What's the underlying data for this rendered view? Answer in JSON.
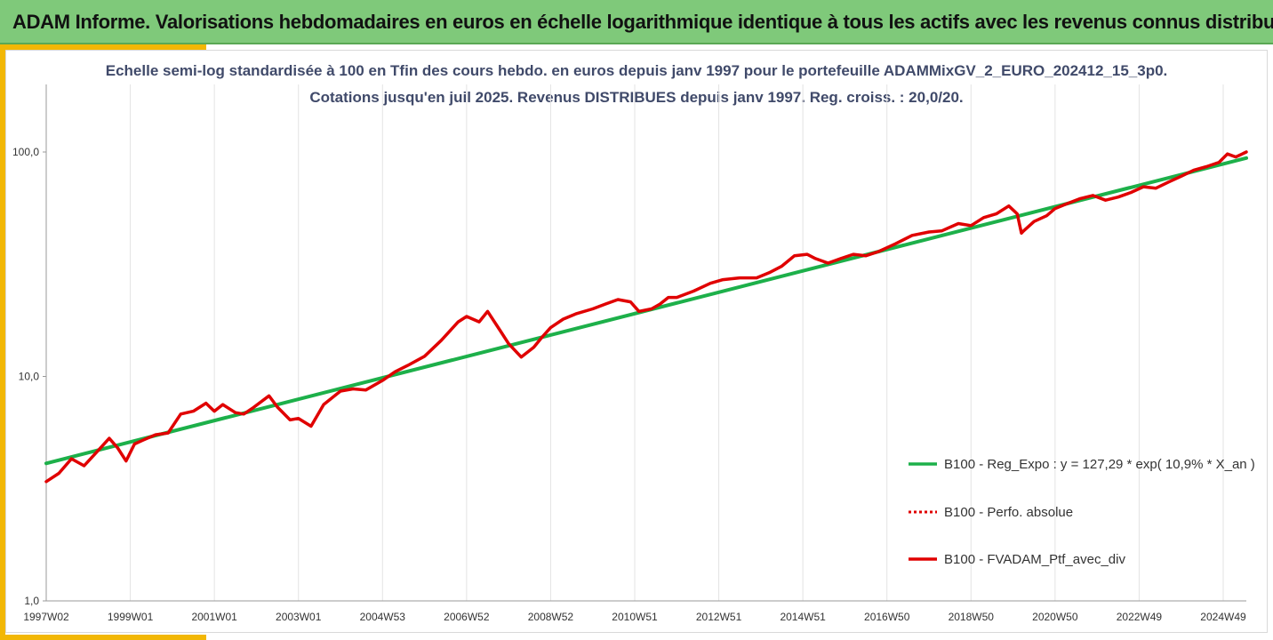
{
  "header": {
    "title": "ADAM Informe. Valorisations hebdomadaires en euros en échelle logarithmique identique à tous les actifs avec les revenus connus distribués"
  },
  "chart_data": {
    "type": "line",
    "title": "Echelle semi-log standardisée  à 100 en Tfin des cours hebdo.  en euros depuis janv 1997 pour le portefeuille ADAMMixGV_2_EURO_202412_15_3p0.",
    "subtitle": "Cotations  jusqu'en juil 2025. Revenus DISTRIBUES depuis janv 1997. Reg. croiss. : 20,0/20.",
    "y_scale": "log",
    "ylim": [
      1,
      200
    ],
    "y_ticks": [
      1,
      10,
      100
    ],
    "y_tick_labels": [
      "1,0",
      "10,0",
      "100,0"
    ],
    "x_range": [
      1997.0,
      2025.55
    ],
    "x_ticks": [
      1997.0,
      1999.0,
      2001.0,
      2003.0,
      2005.0,
      2007.0,
      2009.0,
      2011.0,
      2013.0,
      2015.0,
      2017.0,
      2019.0,
      2021.0,
      2023.0,
      2025.0
    ],
    "x_tick_labels": [
      "1997W02",
      "1999W01",
      "2001W01",
      "2003W01",
      "2004W53",
      "2006W52",
      "2008W52",
      "2010W51",
      "2012W51",
      "2014W51",
      "2016W50",
      "2018W50",
      "2020W50",
      "2022W49",
      "2024W49"
    ],
    "grid": "vertical",
    "legend_position": "right",
    "legend": [
      {
        "label": "B100 - Reg_Expo : y = 127,29 * exp( 10,9% *  X_an )",
        "color": "#1db04a",
        "style": "solid"
      },
      {
        "label": "B100 - Perfo. absolue",
        "color": "#e00000",
        "style": "dotted"
      },
      {
        "label": "B100 - FVADAM_Ptf_avec_div",
        "color": "#e00000",
        "style": "solid"
      }
    ],
    "series": [
      {
        "name": "B100 - Reg_Expo : y = 127,29 * exp( 10,9% *  X_an )",
        "x": [
          1997.0,
          2025.55
        ],
        "values": [
          4.1,
          94
        ]
      },
      {
        "name": "B100 - FVADAM_Ptf_avec_div",
        "x": [
          1997.0,
          1997.3,
          1997.6,
          1997.9,
          1998.2,
          1998.5,
          1998.7,
          1998.9,
          1999.1,
          1999.3,
          1999.6,
          1999.9,
          2000.2,
          2000.5,
          2000.8,
          2001.0,
          2001.2,
          2001.5,
          2001.7,
          2001.9,
          2002.3,
          2002.5,
          2002.8,
          2003.0,
          2003.3,
          2003.6,
          2004.0,
          2004.3,
          2004.6,
          2005.0,
          2005.3,
          2005.6,
          2006.0,
          2006.4,
          2006.8,
          2007.0,
          2007.3,
          2007.5,
          2007.8,
          2008.0,
          2008.3,
          2008.6,
          2008.8,
          2009.0,
          2009.3,
          2009.6,
          2010.0,
          2010.3,
          2010.6,
          2010.9,
          2011.1,
          2011.4,
          2011.6,
          2011.8,
          2012.0,
          2012.4,
          2012.8,
          2013.1,
          2013.5,
          2013.9,
          2014.2,
          2014.5,
          2014.8,
          2015.1,
          2015.3,
          2015.6,
          2015.9,
          2016.2,
          2016.5,
          2016.8,
          2017.2,
          2017.6,
          2018.0,
          2018.3,
          2018.7,
          2019.0,
          2019.3,
          2019.6,
          2019.9,
          2020.1,
          2020.2,
          2020.25,
          2020.5,
          2020.8,
          2021.0,
          2021.3,
          2021.6,
          2021.9,
          2022.2,
          2022.5,
          2022.8,
          2023.1,
          2023.4,
          2023.7,
          2024.0,
          2024.3,
          2024.6,
          2024.9,
          2025.1,
          2025.3,
          2025.55
        ],
        "values": [
          3.4,
          3.7,
          4.3,
          4.0,
          4.6,
          5.3,
          4.8,
          4.2,
          5.0,
          5.2,
          5.5,
          5.6,
          6.8,
          7.0,
          7.6,
          7.0,
          7.5,
          6.9,
          6.8,
          7.2,
          8.2,
          7.3,
          6.4,
          6.5,
          6.0,
          7.5,
          8.6,
          8.8,
          8.7,
          9.6,
          10.5,
          11.2,
          12.3,
          14.5,
          17.5,
          18.5,
          17.5,
          19.5,
          16.0,
          14.0,
          12.2,
          13.5,
          15.0,
          16.5,
          18.0,
          19.0,
          20.0,
          21.0,
          22.0,
          21.5,
          19.5,
          20.0,
          21.0,
          22.5,
          22.5,
          24.0,
          26.0,
          27.0,
          27.5,
          27.5,
          29.0,
          31.0,
          34.5,
          35.0,
          33.5,
          32.0,
          33.5,
          35.0,
          34.5,
          36.0,
          39.0,
          42.5,
          44.0,
          44.5,
          48.0,
          47.0,
          51.0,
          53.0,
          57.5,
          53.0,
          43.5,
          44.5,
          49.0,
          52.0,
          56.0,
          59.0,
          62.0,
          64.0,
          61.0,
          63.0,
          66.0,
          70.0,
          69.0,
          73.5,
          78.0,
          83.0,
          86.0,
          90.0,
          98.0,
          95.0,
          100.0
        ]
      }
    ]
  }
}
